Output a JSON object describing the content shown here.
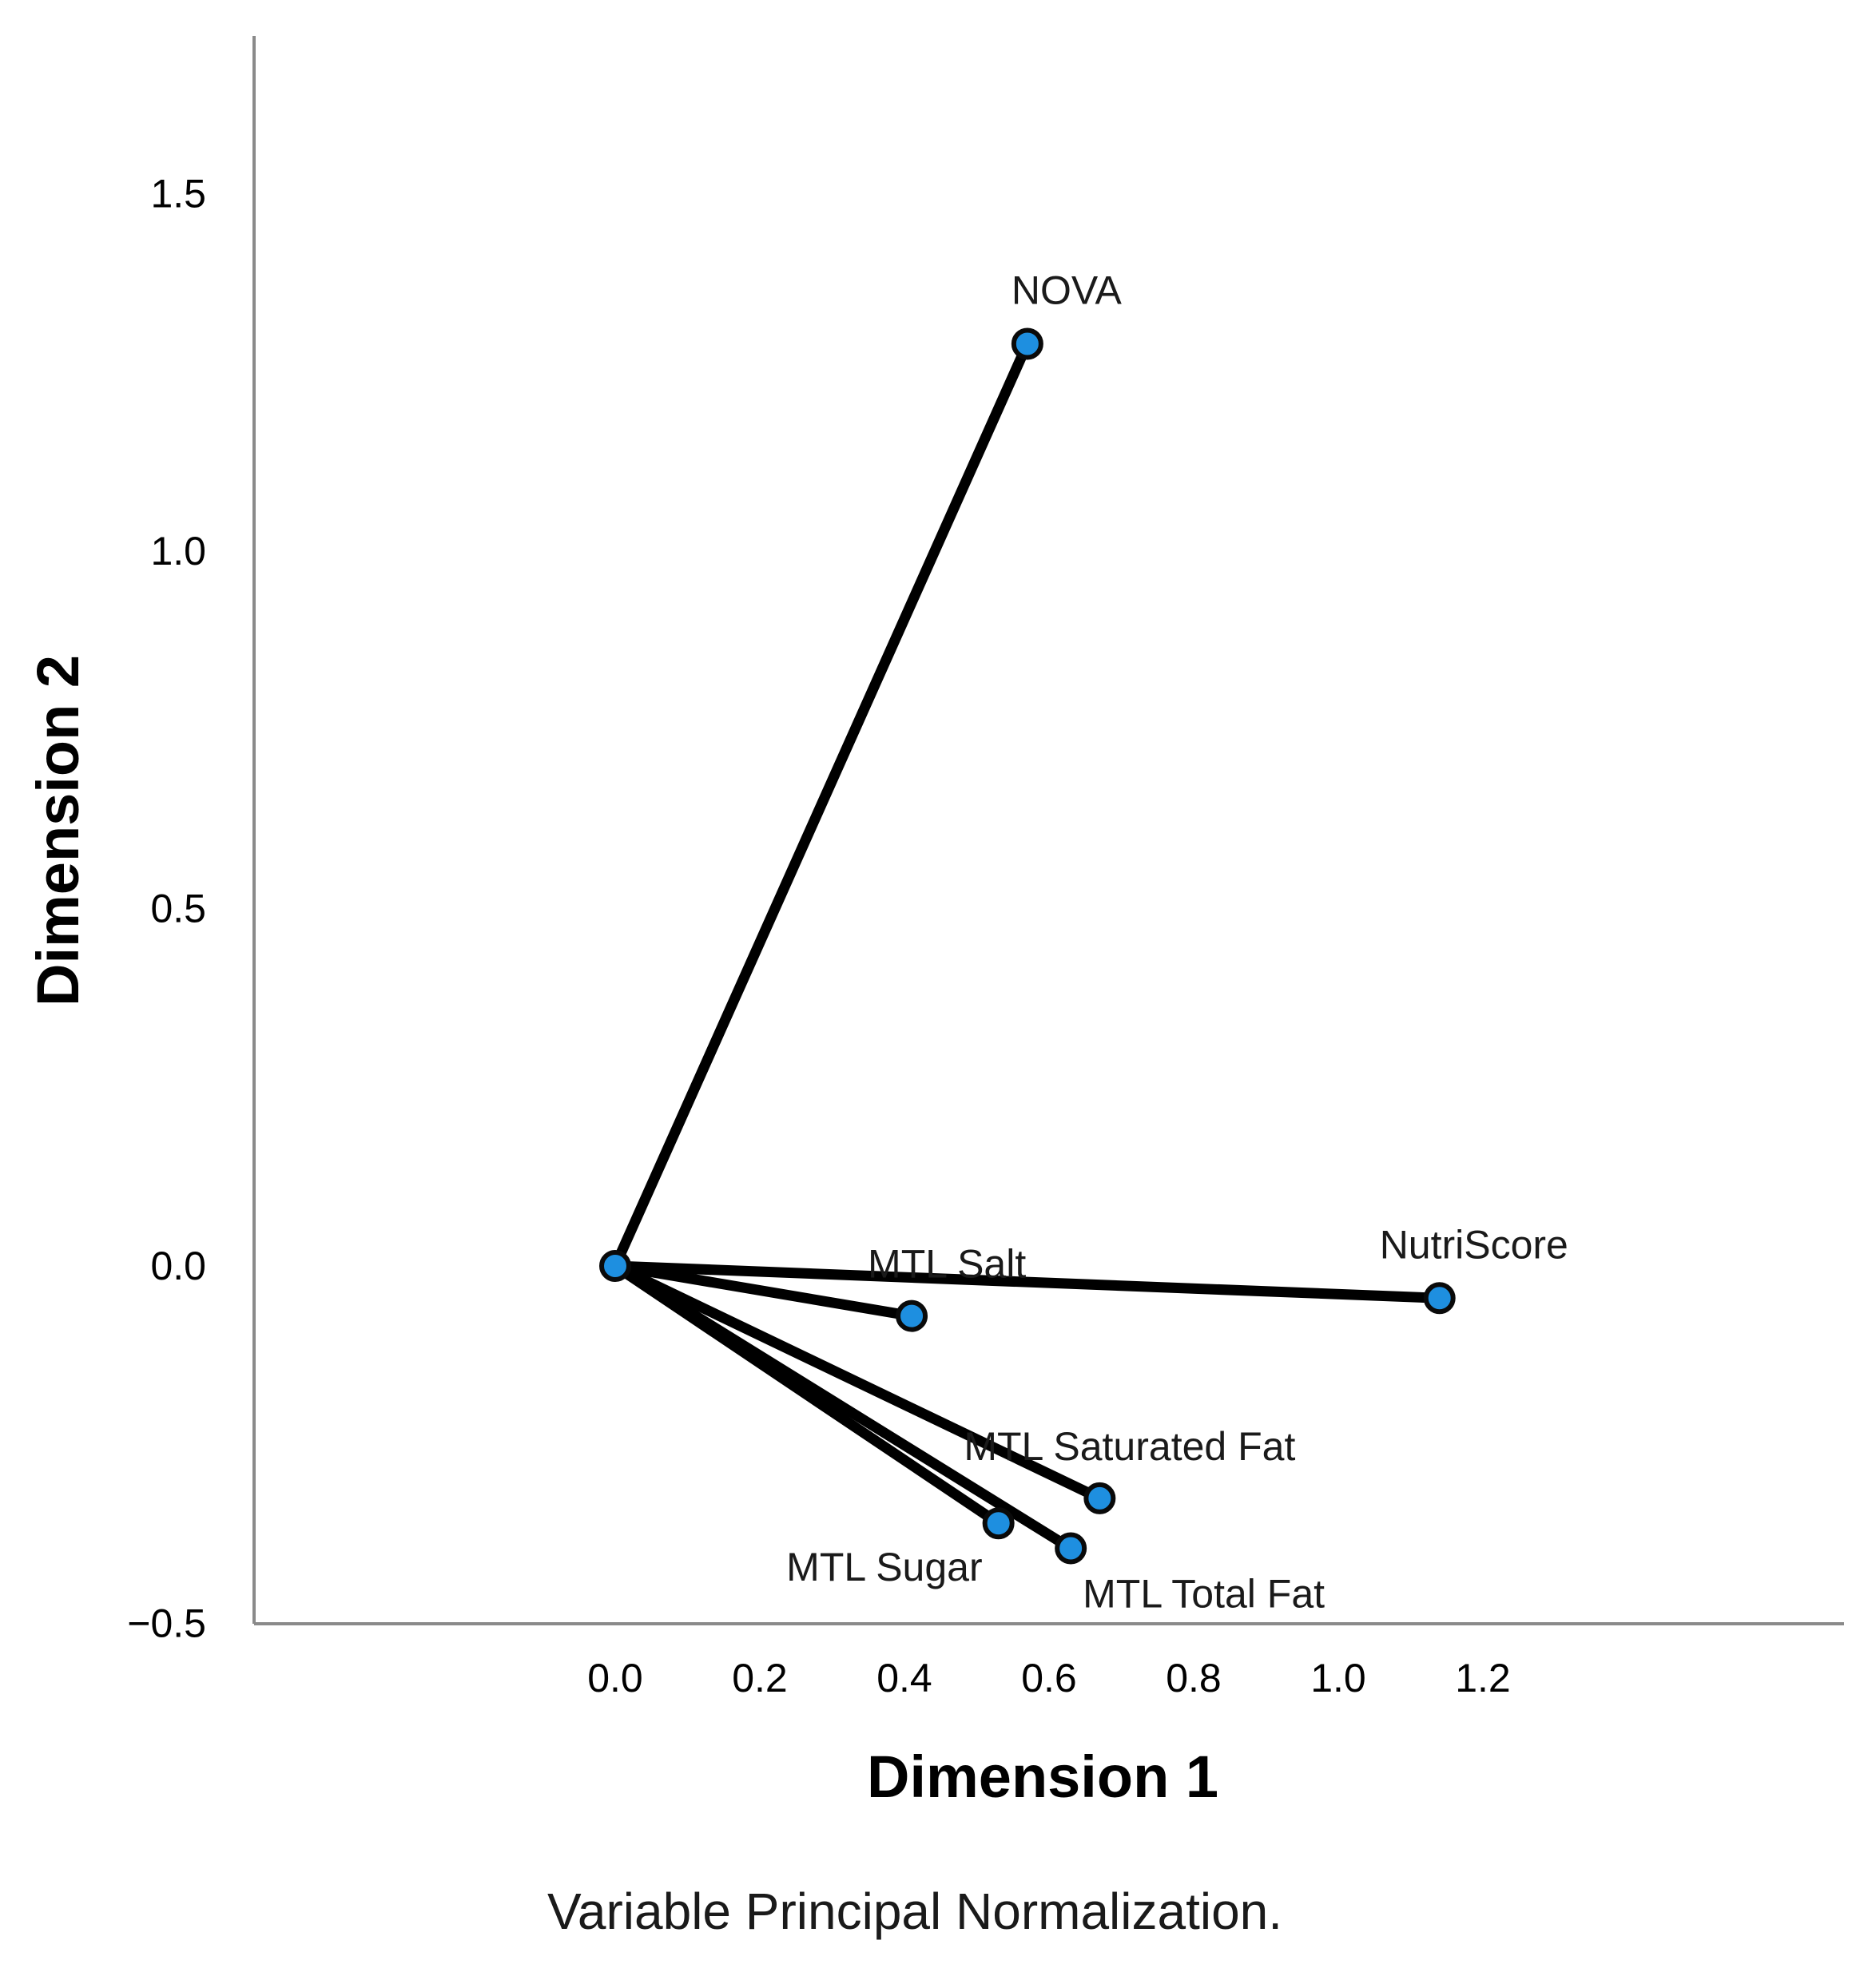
{
  "chart_data": {
    "type": "scatter",
    "subtype": "loading-vectors",
    "xlabel": "Dimension 1",
    "ylabel": "Dimension 2",
    "xlim": [
      -0.5,
      1.7
    ],
    "ylim": [
      -0.5,
      1.72
    ],
    "xticks": [
      "0.0",
      "0.2",
      "0.4",
      "0.6",
      "0.8",
      "1.0",
      "1.2"
    ],
    "xtick_values": [
      0.0,
      0.2,
      0.4,
      0.6,
      0.8,
      1.0,
      1.2
    ],
    "yticks": [
      "−0.5",
      "0.0",
      "0.5",
      "1.0",
      "1.5"
    ],
    "ytick_values": [
      -0.5,
      0.0,
      0.5,
      1.0,
      1.5
    ],
    "grid": false,
    "origin": {
      "x": 0.0,
      "y": 0.0
    },
    "points": [
      {
        "label": "NOVA",
        "x": 0.57,
        "y": 1.29
      },
      {
        "label": "NutriScore",
        "x": 1.14,
        "y": -0.045
      },
      {
        "label": "MTL Salt",
        "x": 0.41,
        "y": -0.07
      },
      {
        "label": "MTL Saturated Fat",
        "x": 0.67,
        "y": -0.325
      },
      {
        "label": "MTL Sugar",
        "x": 0.53,
        "y": -0.36
      },
      {
        "label": "MTL Total Fat",
        "x": 0.63,
        "y": -0.395
      }
    ],
    "marker_color": "#1e8fe0",
    "line_color": "#000000",
    "footnote": "Variable Principal Normalization."
  }
}
